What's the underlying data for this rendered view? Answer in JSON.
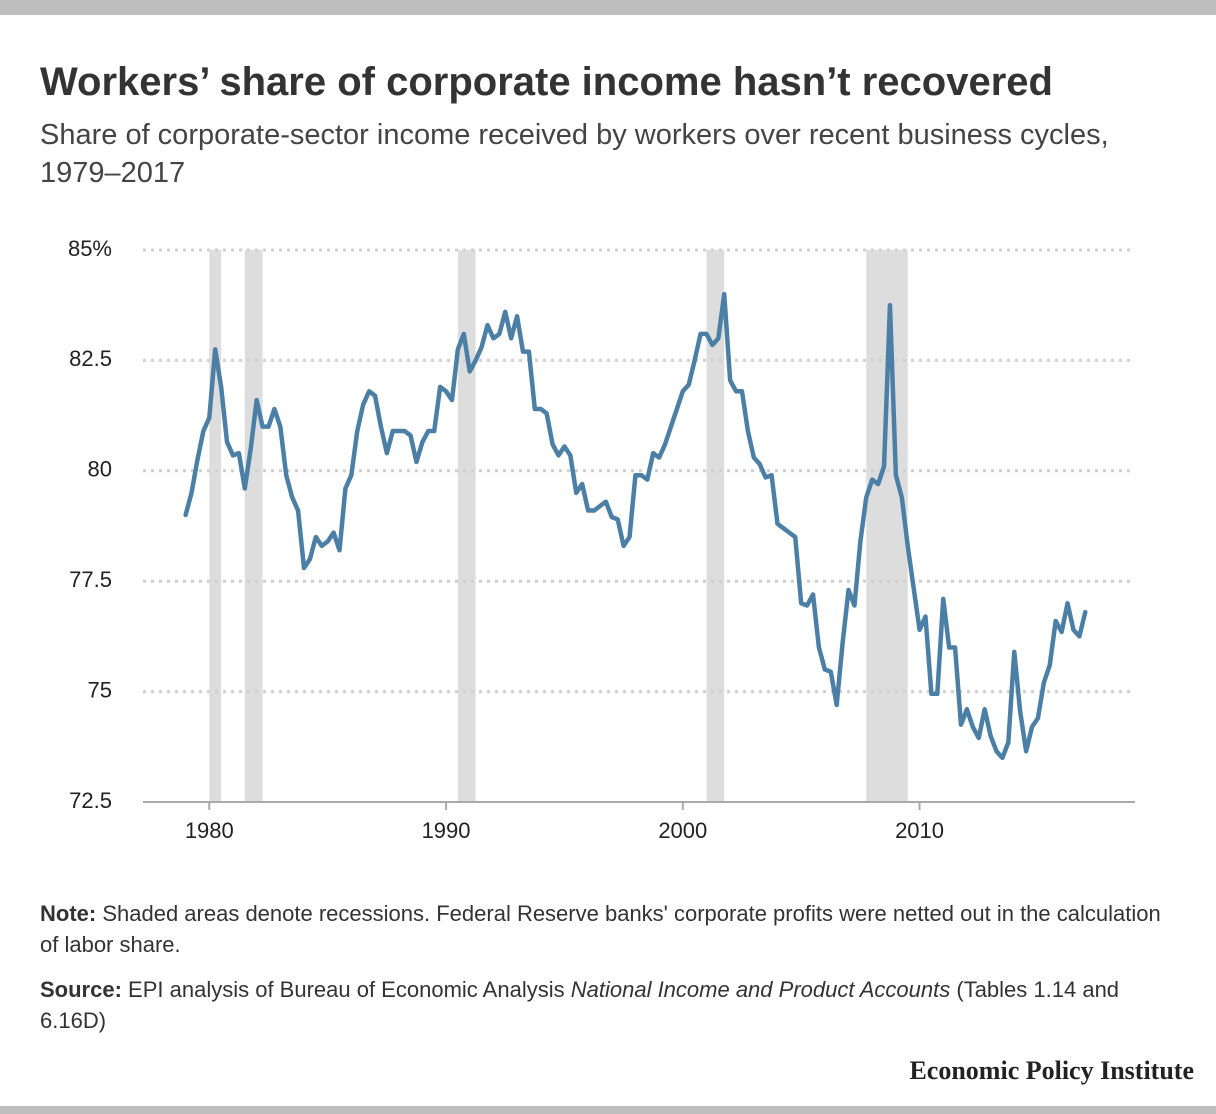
{
  "chart_data": {
    "type": "line",
    "title": "Workers’ share of corporate income hasn’t recovered",
    "subtitle": "Share of corporate-sector income received by workers over recent business cycles, 1979–2017",
    "note": {
      "label": "Note:",
      "text": "Shaded areas denote recessions. Federal Reserve banks' corporate profits were netted out in the calculation of labor share."
    },
    "source": {
      "label": "Source:",
      "text": "EPI analysis of Bureau of Economic Analysis",
      "italic": "National Income and Product Accounts",
      "tail": "(Tables 1.14 and 6.16D)"
    },
    "brand": "Economic Policy Institute",
    "color": "#4b7fa6",
    "recession_color": "#dddddd",
    "recessions": [
      [
        1980.0,
        1980.5
      ],
      [
        1981.5,
        1982.25
      ],
      [
        1990.5,
        1991.25
      ],
      [
        2001.0,
        2001.75
      ],
      [
        2007.75,
        2009.5
      ]
    ],
    "xlim": [
      1977.2,
      2019.1
    ],
    "ylim": [
      72.5,
      85
    ],
    "xticks": [
      1980,
      1990,
      2000,
      2010
    ],
    "yticks": [
      72.5,
      75,
      77.5,
      80,
      82.5,
      {
        "value": 85,
        "label": "85%"
      }
    ],
    "grid": true,
    "x": [
      1979,
      1979.25,
      1979.5,
      1979.75,
      1980,
      1980.25,
      1980.5,
      1980.75,
      1981,
      1981.25,
      1981.5,
      1981.75,
      1982,
      1982.25,
      1982.5,
      1982.75,
      1983,
      1983.25,
      1983.5,
      1983.75,
      1984,
      1984.25,
      1984.5,
      1984.75,
      1985,
      1985.25,
      1985.5,
      1985.75,
      1986,
      1986.25,
      1986.5,
      1986.75,
      1987,
      1987.25,
      1987.5,
      1987.75,
      1988,
      1988.25,
      1988.5,
      1988.75,
      1989,
      1989.25,
      1989.5,
      1989.75,
      1990,
      1990.25,
      1990.5,
      1990.75,
      1991,
      1991.25,
      1991.5,
      1991.75,
      1992,
      1992.25,
      1992.5,
      1992.75,
      1993,
      1993.25,
      1993.5,
      1993.75,
      1994,
      1994.25,
      1994.5,
      1994.75,
      1995,
      1995.25,
      1995.5,
      1995.75,
      1996,
      1996.25,
      1996.5,
      1996.75,
      1997,
      1997.25,
      1997.5,
      1997.75,
      1998,
      1998.25,
      1998.5,
      1998.75,
      1999,
      1999.25,
      1999.5,
      1999.75,
      2000,
      2000.25,
      2000.5,
      2000.75,
      2001,
      2001.25,
      2001.5,
      2001.75,
      2002,
      2002.25,
      2002.5,
      2002.75,
      2003,
      2003.25,
      2003.5,
      2003.75,
      2004,
      2004.25,
      2004.5,
      2004.75,
      2005,
      2005.25,
      2005.5,
      2005.75,
      2006,
      2006.25,
      2006.5,
      2006.75,
      2007,
      2007.25,
      2007.5,
      2007.75,
      2008,
      2008.25,
      2008.5,
      2008.75,
      2009,
      2009.25,
      2009.5,
      2009.75,
      2010,
      2010.25,
      2010.5,
      2010.75,
      2011,
      2011.25,
      2011.5,
      2011.75,
      2012,
      2012.25,
      2012.5,
      2012.75,
      2013,
      2013.25,
      2013.5,
      2013.75,
      2014,
      2014.25,
      2014.5,
      2014.75,
      2015,
      2015.25,
      2015.5,
      2015.75,
      2016,
      2016.25,
      2016.5,
      2016.75,
      2017
    ],
    "values": [
      79.0,
      79.5,
      80.25,
      80.9,
      81.2,
      82.75,
      81.9,
      80.65,
      80.35,
      80.4,
      79.6,
      80.5,
      81.6,
      81.0,
      81.0,
      81.4,
      81.0,
      79.9,
      79.4,
      79.1,
      77.8,
      78.0,
      78.5,
      78.3,
      78.4,
      78.6,
      78.2,
      79.6,
      79.9,
      80.9,
      81.5,
      81.8,
      81.7,
      81.0,
      80.4,
      80.9,
      80.9,
      80.9,
      80.8,
      80.2,
      80.65,
      80.9,
      80.9,
      81.9,
      81.8,
      81.6,
      82.75,
      83.1,
      82.25,
      82.5,
      82.8,
      83.3,
      83.0,
      83.1,
      83.6,
      83.0,
      83.5,
      82.7,
      82.7,
      81.4,
      81.4,
      81.3,
      80.6,
      80.35,
      80.55,
      80.35,
      79.5,
      79.7,
      79.1,
      79.1,
      79.2,
      79.3,
      78.95,
      78.9,
      78.3,
      78.5,
      79.9,
      79.9,
      79.8,
      80.4,
      80.3,
      80.6,
      81.0,
      81.4,
      81.8,
      81.95,
      82.5,
      83.1,
      83.1,
      82.85,
      83.0,
      84.0,
      82.05,
      81.8,
      81.8,
      80.9,
      80.3,
      80.15,
      79.85,
      79.9,
      78.8,
      78.7,
      78.6,
      78.5,
      77.0,
      76.95,
      77.2,
      76.0,
      75.5,
      75.45,
      74.7,
      76.1,
      77.3,
      76.95,
      78.4,
      79.4,
      79.8,
      79.7,
      80.1,
      83.75,
      79.9,
      79.4,
      78.3,
      77.35,
      76.4,
      76.7,
      74.95,
      74.95,
      77.1,
      76.0,
      76.0,
      74.25,
      74.6,
      74.2,
      73.95,
      74.6,
      74.0,
      73.65,
      73.5,
      73.85,
      75.9,
      74.55,
      73.65,
      74.2,
      74.4,
      75.2,
      75.6,
      76.6,
      76.35,
      77.0,
      76.4,
      76.25,
      76.8
    ]
  }
}
